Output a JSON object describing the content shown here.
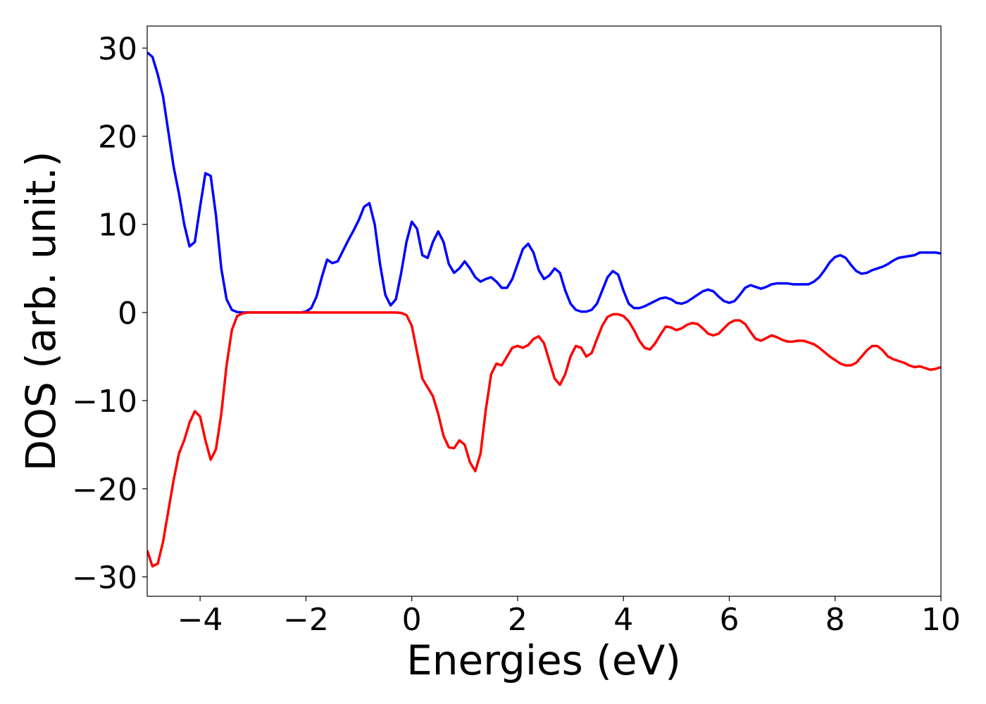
{
  "chart_data": {
    "type": "line",
    "xlabel": "Energies (eV)",
    "ylabel": "DOS (arb. unit.)",
    "xlim": [
      -5,
      10
    ],
    "ylim": [
      -32.2,
      32.5
    ],
    "xticks": [
      {
        "value": -4,
        "label": "−4"
      },
      {
        "value": -2,
        "label": "−2"
      },
      0,
      2,
      4,
      6,
      8,
      10
    ],
    "yticks": [
      {
        "value": -30,
        "label": "−30"
      },
      {
        "value": -20,
        "label": "−20"
      },
      {
        "value": -10,
        "label": "−10"
      },
      0,
      10,
      20,
      30
    ],
    "x": [
      -5.0,
      -4.9,
      -4.8,
      -4.7,
      -4.6,
      -4.5,
      -4.4,
      -4.3,
      -4.2,
      -4.1,
      -4.0,
      -3.9,
      -3.8,
      -3.7,
      -3.6,
      -3.5,
      -3.4,
      -3.3,
      -3.2,
      -3.1,
      -3.0,
      -2.9,
      -2.8,
      -2.7,
      -2.6,
      -2.5,
      -2.4,
      -2.3,
      -2.2,
      -2.1,
      -2.0,
      -1.9,
      -1.8,
      -1.7,
      -1.6,
      -1.5,
      -1.4,
      -1.3,
      -1.2,
      -1.1,
      -1.0,
      -0.9,
      -0.8,
      -0.7,
      -0.6,
      -0.5,
      -0.4,
      -0.3,
      -0.2,
      -0.1,
      0.0,
      0.1,
      0.2,
      0.3,
      0.4,
      0.5,
      0.6,
      0.7,
      0.8,
      0.9,
      1.0,
      1.1,
      1.2,
      1.3,
      1.4,
      1.5,
      1.6,
      1.7,
      1.8,
      1.9,
      2.0,
      2.1,
      2.2,
      2.3,
      2.4,
      2.5,
      2.6,
      2.7,
      2.8,
      2.9,
      3.0,
      3.1,
      3.2,
      3.3,
      3.4,
      3.5,
      3.6,
      3.7,
      3.8,
      3.9,
      4.0,
      4.1,
      4.2,
      4.3,
      4.4,
      4.5,
      4.6,
      4.7,
      4.8,
      4.9,
      5.0,
      5.1,
      5.2,
      5.3,
      5.4,
      5.5,
      5.6,
      5.7,
      5.8,
      5.9,
      6.0,
      6.1,
      6.2,
      6.3,
      6.4,
      6.5,
      6.6,
      6.7,
      6.8,
      6.9,
      7.0,
      7.1,
      7.2,
      7.3,
      7.4,
      7.5,
      7.6,
      7.7,
      7.8,
      7.9,
      8.0,
      8.1,
      8.2,
      8.3,
      8.4,
      8.5,
      8.6,
      8.7,
      8.8,
      8.9,
      9.0,
      9.1,
      9.2,
      9.3,
      9.4,
      9.5,
      9.6,
      9.7,
      9.8,
      9.9,
      10.0
    ],
    "series": [
      {
        "color": "#0000ff",
        "values": [
          29.5,
          29,
          27,
          24.5,
          20.5,
          16.5,
          13.5,
          10,
          7.5,
          8,
          12,
          15.8,
          15.5,
          11,
          5,
          1.5,
          0.3,
          0.05,
          0,
          0,
          0,
          0,
          0,
          0,
          0,
          0,
          0,
          0,
          0,
          0,
          0.1,
          0.5,
          1.8,
          4,
          6,
          5.6,
          5.8,
          7,
          8.2,
          9.3,
          10.5,
          12,
          12.4,
          10,
          5.5,
          2,
          0.8,
          1.5,
          4.5,
          8,
          10.3,
          9.5,
          6.5,
          6.2,
          8,
          9.2,
          8,
          5.5,
          4.5,
          5,
          5.8,
          5,
          4,
          3.5,
          3.8,
          4,
          3.5,
          2.8,
          2.8,
          3.8,
          5.5,
          7.2,
          7.8,
          6.8,
          4.8,
          3.8,
          4.2,
          5,
          4.5,
          2.5,
          1,
          0.3,
          0.1,
          0.1,
          0.3,
          1,
          2.5,
          4,
          4.7,
          4.3,
          2.5,
          1,
          0.5,
          0.5,
          0.7,
          1,
          1.3,
          1.6,
          1.7,
          1.5,
          1.1,
          1,
          1.2,
          1.6,
          2,
          2.4,
          2.6,
          2.4,
          1.8,
          1.3,
          1.1,
          1.3,
          2,
          2.8,
          3.1,
          2.9,
          2.7,
          2.9,
          3.2,
          3.3,
          3.3,
          3.3,
          3.2,
          3.2,
          3.2,
          3.2,
          3.5,
          4,
          4.8,
          5.7,
          6.3,
          6.5,
          6.2,
          5.4,
          4.7,
          4.4,
          4.5,
          4.8,
          5,
          5.2,
          5.5,
          5.9,
          6.2,
          6.3,
          6.4,
          6.5,
          6.8,
          6.8,
          6.8,
          6.8,
          6.7
        ]
      },
      {
        "color": "#ff0000",
        "values": [
          -27,
          -28.8,
          -28.5,
          -26,
          -22.5,
          -19,
          -16,
          -14.5,
          -12.5,
          -11.2,
          -11.8,
          -14.5,
          -16.7,
          -15.5,
          -11.5,
          -6,
          -2,
          -0.4,
          -0.1,
          0,
          0,
          0,
          0,
          0,
          0,
          0,
          0,
          0,
          0,
          0,
          0,
          0,
          0,
          0,
          0,
          0,
          0,
          0,
          0,
          0,
          0,
          0,
          0,
          0,
          0,
          0,
          0,
          0,
          -0.05,
          -0.3,
          -1.5,
          -4.5,
          -7.5,
          -8.5,
          -9.5,
          -11.5,
          -14,
          -15.3,
          -15.4,
          -14.5,
          -15,
          -17,
          -18,
          -16,
          -11,
          -7,
          -5.8,
          -6,
          -5,
          -4,
          -3.8,
          -4,
          -3.7,
          -3,
          -2.7,
          -3.5,
          -5.5,
          -7.5,
          -8.2,
          -7,
          -5,
          -3.8,
          -4,
          -5,
          -4.6,
          -3,
          -1.5,
          -0.5,
          -0.2,
          -0.2,
          -0.4,
          -1,
          -2,
          -3.2,
          -4,
          -4.2,
          -3.5,
          -2.5,
          -1.6,
          -1.7,
          -2,
          -1.8,
          -1.4,
          -1.2,
          -1.3,
          -1.8,
          -2.4,
          -2.6,
          -2.4,
          -1.8,
          -1.2,
          -0.9,
          -0.9,
          -1.3,
          -2.2,
          -3,
          -3.2,
          -2.9,
          -2.6,
          -2.8,
          -3.1,
          -3.3,
          -3.3,
          -3.2,
          -3.2,
          -3.4,
          -3.6,
          -4,
          -4.5,
          -5,
          -5.4,
          -5.8,
          -6,
          -6,
          -5.7,
          -5,
          -4.3,
          -3.8,
          -3.8,
          -4.3,
          -5,
          -5.3,
          -5.5,
          -5.7,
          -6,
          -6.2,
          -6.1,
          -6.3,
          -6.5,
          -6.4,
          -6.2
        ]
      }
    ]
  }
}
